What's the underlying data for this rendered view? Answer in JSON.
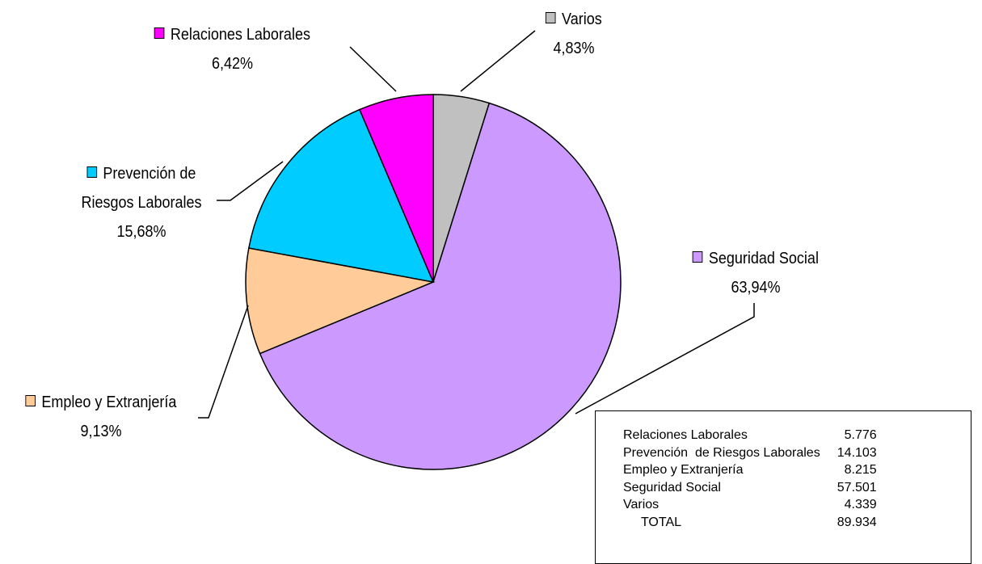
{
  "chart_data": {
    "type": "pie",
    "categories": [
      "Varios",
      "Seguridad Social",
      "Empleo y Extranjería",
      "Prevención de Riesgos Laborales",
      "Relaciones Laborales"
    ],
    "values": [
      4.83,
      63.94,
      9.13,
      15.68,
      6.42
    ],
    "value_labels": [
      "4,83%",
      "63,94%",
      "9,13%",
      "15,68%",
      "6,42%"
    ],
    "colors": [
      "#c0c0c0",
      "#cc99ff",
      "#ffcc99",
      "#00ccff",
      "#ff00ff"
    ]
  },
  "table": {
    "rows": [
      [
        "Relaciones Laborales",
        "5.776"
      ],
      [
        "Prevención  de Riesgos Laborales",
        "14.103"
      ],
      [
        "Empleo y Extranjería",
        "8.215"
      ],
      [
        "Seguridad Social",
        "57.501"
      ],
      [
        "Varios",
        "4.339"
      ],
      [
        "     TOTAL",
        "89.934"
      ]
    ]
  }
}
